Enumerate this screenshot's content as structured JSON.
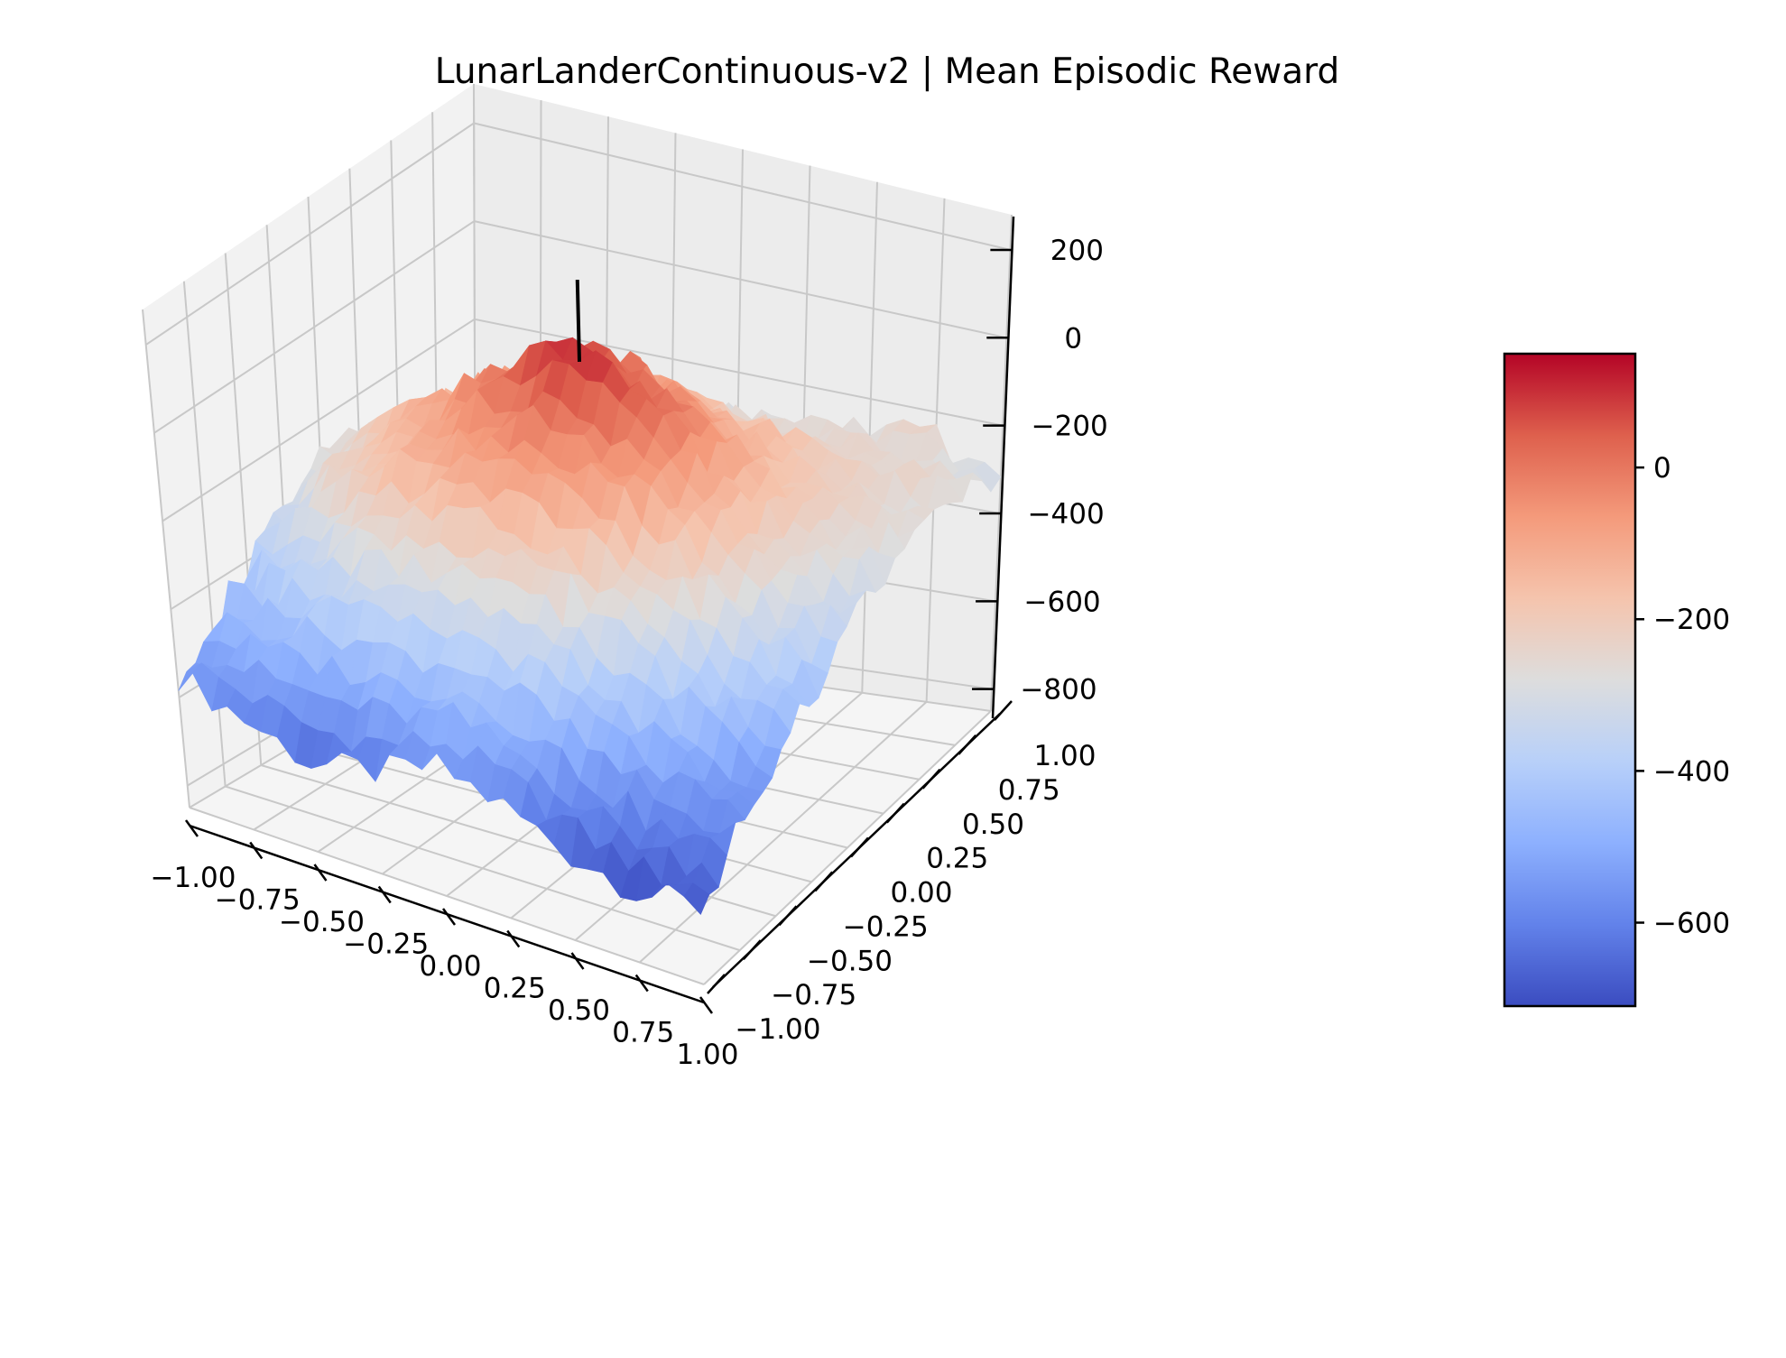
{
  "chart_data": {
    "type": "surface3d",
    "title": "LunarLanderContinuous-v2 | Mean Episodic Reward",
    "xlabel": "",
    "ylabel": "",
    "zlabel": "",
    "x_ticks": [
      "−1.00",
      "−0.75",
      "−0.50",
      "−0.25",
      "0.00",
      "0.25",
      "0.50",
      "0.75",
      "1.00"
    ],
    "y_ticks": [
      "−1.00",
      "−0.75",
      "−0.50",
      "−0.25",
      "0.00",
      "0.25",
      "0.50",
      "0.75",
      "1.00"
    ],
    "z_ticks": [
      "−800",
      "−600",
      "−400",
      "−200",
      "0",
      "200"
    ],
    "xlim": [
      -1,
      1
    ],
    "ylim": [
      -1,
      1
    ],
    "zlim": [
      -850,
      280
    ],
    "colorbar": {
      "ticks": [
        "−600",
        "−400",
        "−200",
        "0"
      ],
      "range": [
        -710,
        150
      ],
      "colormap": "coolwarm",
      "low_color": "#3b4cc0",
      "mid_color": "#dddddd",
      "high_color": "#b40426"
    },
    "grid": true,
    "center_marker": {
      "x": 0,
      "y": 0,
      "z_range": [
        -850,
        260
      ]
    },
    "surface": {
      "grid_x": [
        -1.0,
        -0.75,
        -0.5,
        -0.25,
        0.0,
        0.25,
        0.5,
        0.75,
        1.0
      ],
      "grid_y": [
        -1.0,
        -0.75,
        -0.5,
        -0.25,
        0.0,
        0.25,
        0.5,
        0.75,
        1.0
      ],
      "z_rows_by_y": [
        [
          -550,
          -600,
          -650,
          -620,
          -560,
          -600,
          -660,
          -690,
          -680
        ],
        [
          -480,
          -450,
          -420,
          -420,
          -400,
          -440,
          -520,
          -580,
          -600
        ],
        [
          -420,
          -330,
          -260,
          -230,
          -220,
          -250,
          -340,
          -450,
          -540
        ],
        [
          -330,
          -220,
          -110,
          -60,
          -40,
          -80,
          -180,
          -320,
          -440
        ],
        [
          -290,
          -180,
          -70,
          40,
          110,
          30,
          -110,
          -260,
          -370
        ],
        [
          -280,
          -200,
          -100,
          -40,
          30,
          -40,
          -140,
          -250,
          -300
        ],
        [
          -310,
          -240,
          -170,
          -130,
          -110,
          -130,
          -180,
          -230,
          -260
        ],
        [
          -360,
          -300,
          -260,
          -240,
          -230,
          -230,
          -240,
          -250,
          -270
        ],
        [
          -430,
          -370,
          -330,
          -310,
          -300,
          -290,
          -270,
          -260,
          -320
        ]
      ]
    }
  }
}
